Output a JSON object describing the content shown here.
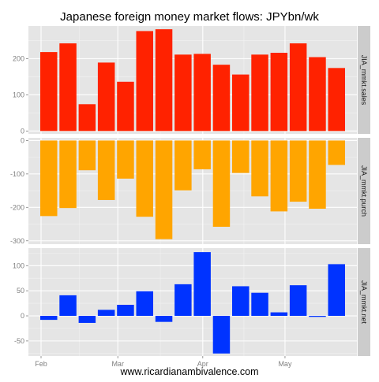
{
  "chart_data": {
    "type": "bar",
    "title": "Japanese foreign money market flows: JPYbn/wk",
    "caption": "www.ricardianambivalence.com",
    "x": [
      "Feb 1",
      "Feb 8",
      "Feb 15",
      "Feb 22",
      "Mar 1",
      "Mar 8",
      "Mar 15",
      "Mar 22",
      "Mar 29",
      "Apr 5",
      "Apr 12",
      "Apr 19",
      "Apr 26",
      "May 3",
      "May 10",
      "May 17"
    ],
    "x_ticks": [
      "Feb",
      "Mar",
      "Apr",
      "May"
    ],
    "grid": true,
    "panels": [
      {
        "strip_label": "JIA_mmkt.sales",
        "color": "#ff2200",
        "ylim": [
          -8,
          290
        ],
        "yticks": [
          0,
          100,
          200
        ],
        "values": [
          218,
          242,
          74,
          189,
          136,
          276,
          281,
          211,
          213,
          183,
          156,
          211,
          216,
          242,
          204,
          174
        ]
      },
      {
        "strip_label": "JIA_mmkt.purch",
        "color": "#ffa500",
        "ylim": [
          -310,
          8
        ],
        "yticks": [
          0,
          -100,
          -200,
          -300
        ],
        "values": [
          -226,
          -202,
          -89,
          -178,
          -114,
          -228,
          -295,
          -149,
          -86,
          -258,
          -97,
          -167,
          -212,
          -183,
          -204,
          -73
        ]
      },
      {
        "strip_label": "JIA_mmkt.net",
        "color": "#0033ff",
        "ylim": [
          -80,
          135
        ],
        "yticks": [
          100,
          50,
          0,
          -50
        ],
        "values": [
          -8,
          41,
          -14,
          12,
          22,
          49,
          -12,
          63,
          127,
          -75,
          59,
          46,
          7,
          61,
          -2,
          103
        ]
      }
    ]
  }
}
